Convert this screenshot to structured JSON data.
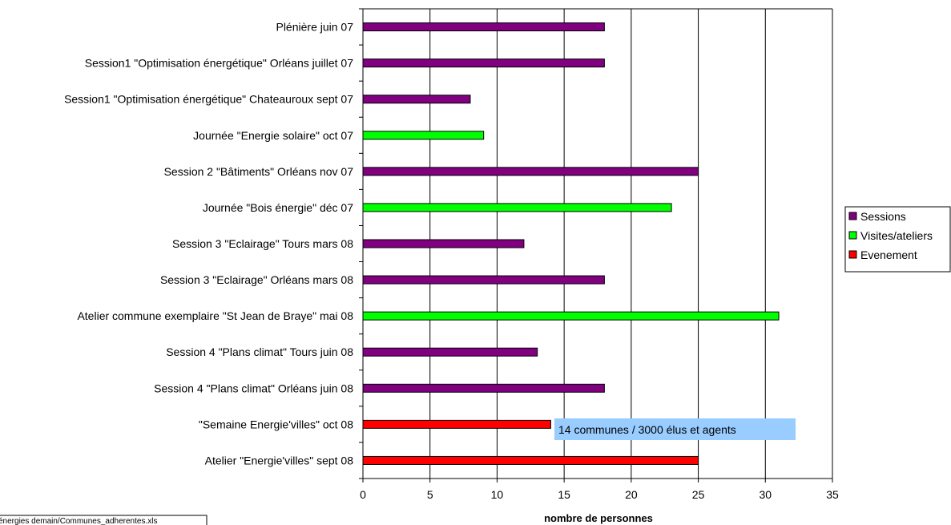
{
  "chart_data": {
    "type": "bar",
    "orientation": "horizontal",
    "categories": [
      "Plénière juin 07",
      "Session1 \"Optimisation énergétique\" Orléans juillet 07",
      "Session1 \"Optimisation énergétique\" Chateauroux sept 07",
      "Journée \"Energie solaire\" oct 07",
      "Session 2 \"Bâtiments\" Orléans nov 07",
      "Journée \"Bois énergie\" déc 07",
      "Session 3 \"Eclairage\" Tours mars 08",
      "Session 3 \"Eclairage\" Orléans mars 08",
      "Atelier commune exemplaire \"St Jean de Braye\" mai 08",
      "Session 4 \"Plans climat\" Tours juin 08",
      "Session 4 \"Plans climat\" Orléans juin 08",
      "\"Semaine Energie'villes\" oct 08",
      "Atelier \"Energie'villes\" sept 08"
    ],
    "values": [
      18,
      18,
      8,
      9,
      25,
      23,
      12,
      18,
      31,
      13,
      18,
      14,
      25
    ],
    "bar_series": [
      "Sessions",
      "Sessions",
      "Sessions",
      "Visites/ateliers",
      "Sessions",
      "Visites/ateliers",
      "Sessions",
      "Sessions",
      "Visites/ateliers",
      "Sessions",
      "Sessions",
      "Evenement",
      "Evenement"
    ],
    "series": [
      {
        "name": "Sessions",
        "color": "#800080"
      },
      {
        "name": "Visites/ateliers",
        "color": "#00ff00"
      },
      {
        "name": "Evenement",
        "color": "#ff0000"
      }
    ],
    "xlabel": "nombre de personnes",
    "xlim": [
      0,
      35
    ],
    "xticks": [
      0,
      5,
      10,
      15,
      20,
      25,
      30,
      35
    ],
    "grid": true,
    "legend_position": "right",
    "annotation": {
      "text": "14 communes / 3000 élus et agents",
      "category_index": 11,
      "background": "#99ccff"
    },
    "file_note": "énergies demain/Communes_adherentes.xls"
  }
}
